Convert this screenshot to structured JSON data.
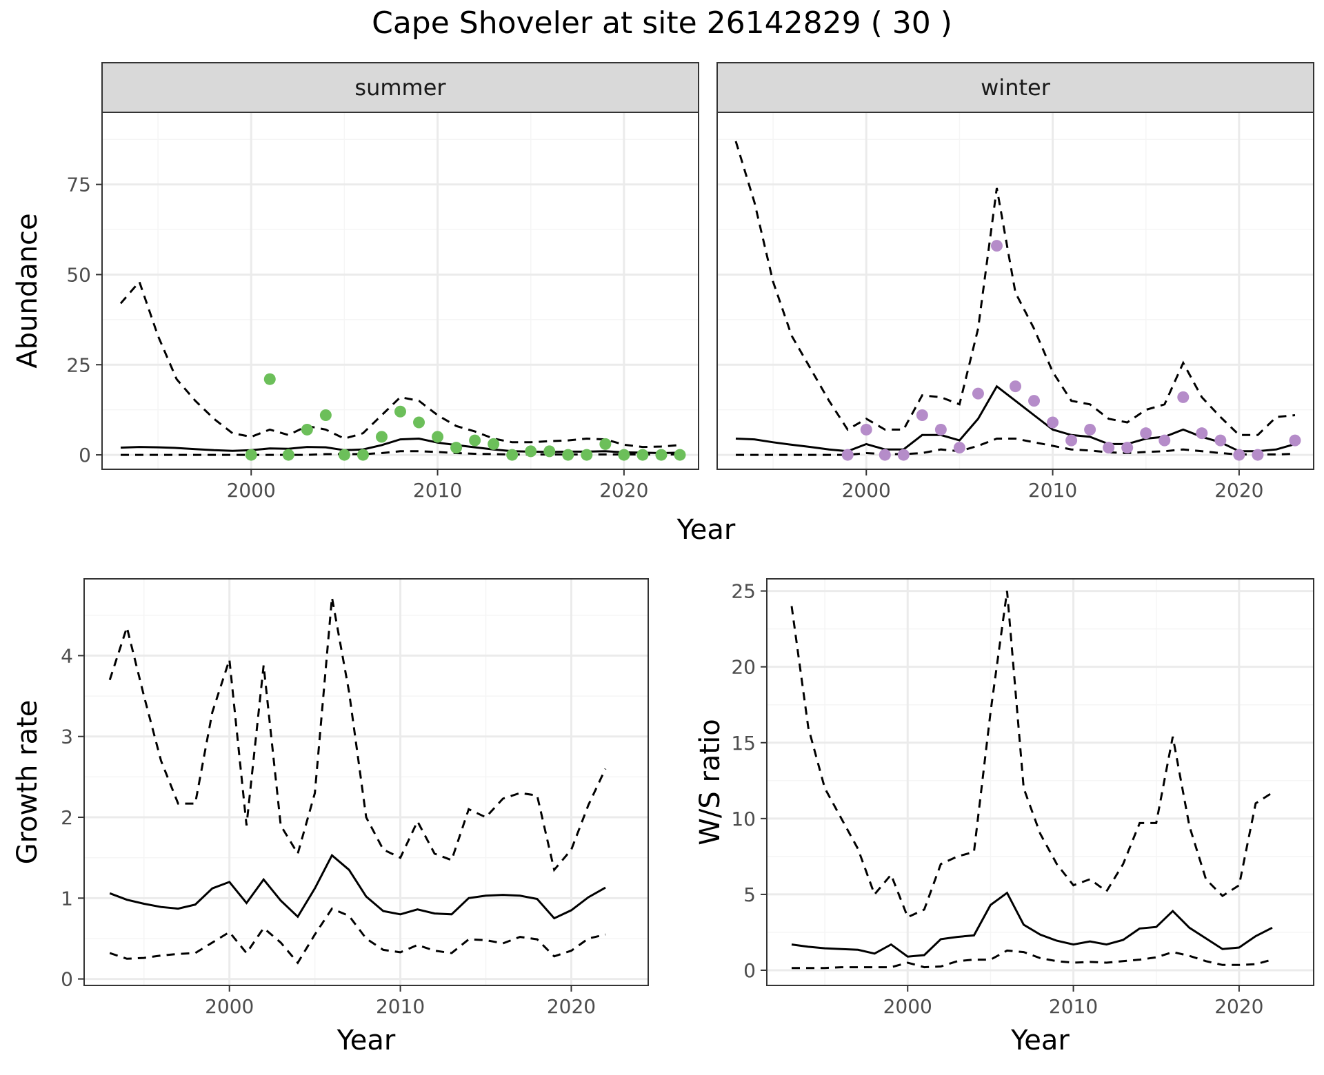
{
  "title": "Cape Shoveler at site 26142829 ( 30 )",
  "colors": {
    "summer_points": "#6cbf5a",
    "winter_points": "#b58cc9",
    "strip_fill": "#d9d9d9",
    "grid_major": "#ebebeb",
    "grid_minor": "#f5f5f5",
    "line": "#000000"
  },
  "chart_data": [
    {
      "id": "summer",
      "type": "line",
      "panel_label": "summer",
      "xlabel": "Year",
      "ylabel": "Abundance",
      "xlim": [
        1992,
        2024
      ],
      "ylim": [
        -4,
        95
      ],
      "xticks": [
        2000,
        2010,
        2020
      ],
      "yticks": [
        0,
        25,
        50,
        75
      ],
      "grid": true,
      "x": [
        1993,
        1994,
        1995,
        1996,
        1997,
        1998,
        1999,
        2000,
        2001,
        2002,
        2003,
        2004,
        2005,
        2006,
        2007,
        2008,
        2009,
        2010,
        2011,
        2012,
        2013,
        2014,
        2015,
        2016,
        2017,
        2018,
        2019,
        2020,
        2021,
        2022,
        2023
      ],
      "series": [
        {
          "style": "solid",
          "values": [
            2,
            2.2,
            2.1,
            1.9,
            1.6,
            1.3,
            1.1,
            1.3,
            1.8,
            1.7,
            2.2,
            2.1,
            1.3,
            1.5,
            2.7,
            4.3,
            4.5,
            3.4,
            2.7,
            2.1,
            1.5,
            1.0,
            0.9,
            0.8,
            0.9,
            0.9,
            1.0,
            0.7,
            0.6,
            0.5,
            0.6
          ]
        },
        {
          "style": "dashed",
          "values": [
            42,
            48,
            33,
            21,
            15,
            10,
            6,
            5,
            7,
            5.5,
            8,
            7,
            4.5,
            6,
            11,
            16,
            15,
            11,
            8,
            6.5,
            4.5,
            3.5,
            3.5,
            3.8,
            4,
            4.5,
            4.3,
            2.8,
            2.2,
            2.3,
            2.7
          ]
        },
        {
          "style": "dashed",
          "values": [
            0,
            0,
            0,
            0,
            0,
            0,
            0,
            0,
            0,
            0,
            0,
            0.2,
            0.2,
            0.2,
            0.5,
            1,
            1,
            0.8,
            0.5,
            0.3,
            0.2,
            0.1,
            0.1,
            0.1,
            0.1,
            0.1,
            0.1,
            0.1,
            0.1,
            0.1,
            0.1
          ]
        }
      ],
      "points": {
        "x": [
          2000,
          2001,
          2002,
          2003,
          2004,
          2005,
          2006,
          2007,
          2008,
          2009,
          2010,
          2011,
          2012,
          2013,
          2014,
          2015,
          2016,
          2017,
          2018,
          2019,
          2020,
          2021,
          2022,
          2023
        ],
        "y": [
          0,
          21,
          0,
          7,
          11,
          0,
          0,
          5,
          12,
          9,
          5,
          2,
          4,
          3,
          0,
          1,
          1,
          0,
          0,
          3,
          0,
          0,
          0,
          0
        ]
      }
    },
    {
      "id": "winter",
      "type": "line",
      "panel_label": "winter",
      "xlabel": "Year",
      "ylabel": "",
      "xlim": [
        1992,
        2024
      ],
      "ylim": [
        -4,
        95
      ],
      "xticks": [
        2000,
        2010,
        2020
      ],
      "yticks": [
        0,
        25,
        50,
        75
      ],
      "grid": true,
      "x": [
        1993,
        1994,
        1995,
        1996,
        1997,
        1998,
        1999,
        2000,
        2001,
        2002,
        2003,
        2004,
        2005,
        2006,
        2007,
        2008,
        2009,
        2010,
        2011,
        2012,
        2013,
        2014,
        2015,
        2016,
        2017,
        2018,
        2019,
        2020,
        2021,
        2022,
        2023
      ],
      "series": [
        {
          "style": "solid",
          "values": [
            4.5,
            4.3,
            3.5,
            2.8,
            2.2,
            1.5,
            1,
            3,
            1.5,
            1.5,
            5.5,
            5.5,
            4,
            10,
            19,
            15,
            11,
            7,
            5.5,
            5,
            3,
            3,
            4.5,
            5,
            7,
            5,
            3.5,
            1,
            1,
            1.5,
            3
          ]
        },
        {
          "style": "dashed",
          "values": [
            87,
            70,
            48,
            33,
            24,
            15,
            7,
            10,
            7,
            7,
            16.5,
            16,
            14,
            35,
            74,
            45,
            35,
            23,
            15,
            14,
            10,
            9,
            12.5,
            14,
            25.5,
            16,
            10.5,
            5.5,
            5.5,
            10.5,
            11
          ]
        },
        {
          "style": "dashed",
          "values": [
            0,
            0,
            0,
            0,
            0,
            0,
            0,
            0.5,
            0.2,
            0.2,
            0.5,
            1.5,
            1,
            2.5,
            4.5,
            4.5,
            3.5,
            2.5,
            1.5,
            1.2,
            0.7,
            0.5,
            0.8,
            1,
            1.5,
            1,
            0.5,
            0.1,
            0.1,
            0.1,
            0.3
          ]
        }
      ],
      "points": {
        "x": [
          1999,
          2000,
          2001,
          2002,
          2003,
          2004,
          2005,
          2006,
          2007,
          2008,
          2009,
          2010,
          2011,
          2012,
          2013,
          2014,
          2015,
          2016,
          2017,
          2018,
          2019,
          2020,
          2021,
          2023
        ],
        "y": [
          0,
          7,
          0,
          0,
          11,
          7,
          2,
          17,
          58,
          19,
          15,
          9,
          4,
          7,
          2,
          2,
          6,
          4,
          16,
          6,
          4,
          0,
          0,
          4
        ]
      }
    },
    {
      "id": "growth",
      "type": "line",
      "xlabel": "Year",
      "ylabel": "Growth rate",
      "xlim": [
        1991.5,
        2024.5
      ],
      "ylim": [
        -0.08,
        4.95
      ],
      "xticks": [
        2000,
        2010,
        2020
      ],
      "yticks": [
        0,
        1,
        2,
        3,
        4
      ],
      "grid": true,
      "x": [
        1993,
        1994,
        1995,
        1996,
        1997,
        1998,
        1999,
        2000,
        2001,
        2002,
        2003,
        2004,
        2005,
        2006,
        2007,
        2008,
        2009,
        2010,
        2011,
        2012,
        2013,
        2014,
        2015,
        2016,
        2017,
        2018,
        2019,
        2020,
        2021,
        2022
      ],
      "series": [
        {
          "style": "solid",
          "values": [
            1.06,
            0.98,
            0.93,
            0.89,
            0.87,
            0.92,
            1.12,
            1.2,
            0.94,
            1.23,
            0.97,
            0.77,
            1.12,
            1.53,
            1.35,
            1.02,
            0.84,
            0.8,
            0.86,
            0.81,
            0.8,
            1.0,
            1.03,
            1.04,
            1.03,
            0.99,
            0.75,
            0.85,
            1.01,
            1.13
          ]
        },
        {
          "style": "dashed",
          "values": [
            3.7,
            4.35,
            3.5,
            2.7,
            2.17,
            2.17,
            3.3,
            3.95,
            1.9,
            3.88,
            1.9,
            1.55,
            2.3,
            4.72,
            3.55,
            2.0,
            1.6,
            1.5,
            1.95,
            1.55,
            1.47,
            2.1,
            2.0,
            2.23,
            2.3,
            2.27,
            1.35,
            1.6,
            2.15,
            2.6
          ]
        },
        {
          "style": "dashed",
          "values": [
            0.32,
            0.25,
            0.26,
            0.29,
            0.31,
            0.32,
            0.45,
            0.58,
            0.32,
            0.63,
            0.45,
            0.2,
            0.55,
            0.87,
            0.78,
            0.5,
            0.36,
            0.33,
            0.42,
            0.35,
            0.32,
            0.49,
            0.48,
            0.44,
            0.52,
            0.49,
            0.28,
            0.35,
            0.5,
            0.55
          ]
        }
      ]
    },
    {
      "id": "ratio",
      "type": "line",
      "xlabel": "Year",
      "ylabel": "W/S ratio",
      "xlim": [
        1991.5,
        2024.5
      ],
      "ylim": [
        -1,
        25.8
      ],
      "xticks": [
        2000,
        2010,
        2020
      ],
      "yticks": [
        0,
        5,
        10,
        15,
        20,
        25
      ],
      "grid": true,
      "x": [
        1993,
        1994,
        1995,
        1996,
        1997,
        1998,
        1999,
        2000,
        2001,
        2002,
        2003,
        2004,
        2005,
        2006,
        2007,
        2008,
        2009,
        2010,
        2011,
        2012,
        2013,
        2014,
        2015,
        2016,
        2017,
        2018,
        2019,
        2020,
        2021,
        2022
      ],
      "series": [
        {
          "style": "solid",
          "values": [
            1.7,
            1.55,
            1.45,
            1.4,
            1.35,
            1.1,
            1.7,
            0.9,
            1.0,
            2.05,
            2.2,
            2.3,
            4.3,
            5.1,
            3.0,
            2.35,
            1.95,
            1.7,
            1.9,
            1.7,
            2.0,
            2.75,
            2.85,
            3.9,
            2.8,
            2.1,
            1.4,
            1.5,
            2.25,
            2.8
          ]
        },
        {
          "style": "dashed",
          "values": [
            24,
            16,
            12,
            10,
            8,
            5,
            6.3,
            3.5,
            4,
            7,
            7.5,
            7.8,
            17,
            25,
            12,
            9,
            7,
            5.6,
            6,
            5.2,
            7,
            9.7,
            9.7,
            15.4,
            9.5,
            6,
            4.9,
            5.6,
            11,
            11.7
          ]
        },
        {
          "style": "dashed",
          "values": [
            0.15,
            0.15,
            0.15,
            0.2,
            0.2,
            0.2,
            0.2,
            0.5,
            0.2,
            0.25,
            0.6,
            0.7,
            0.7,
            1.3,
            1.2,
            0.8,
            0.6,
            0.5,
            0.55,
            0.5,
            0.6,
            0.7,
            0.85,
            1.2,
            0.95,
            0.6,
            0.35,
            0.35,
            0.4,
            0.7
          ]
        }
      ]
    }
  ]
}
